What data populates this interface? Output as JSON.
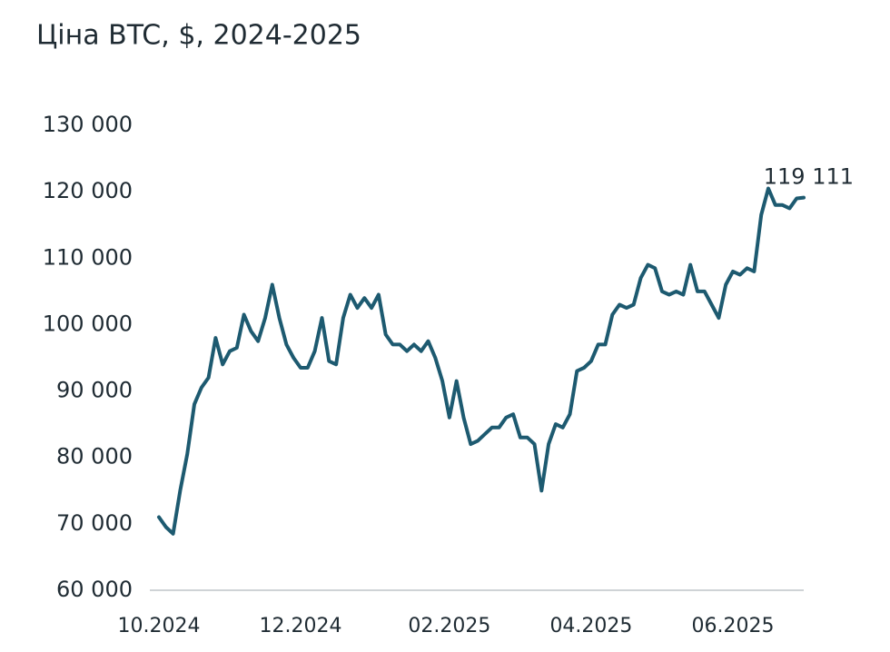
{
  "chart_data": {
    "type": "line",
    "title": "Ціна BTC, $, 2024-2025",
    "categories": [
      "10.2024",
      null,
      null,
      null,
      null,
      null,
      null,
      null,
      null,
      null,
      null,
      null,
      null,
      null,
      null,
      null,
      null,
      null,
      null,
      null,
      "12.2024",
      null,
      null,
      null,
      null,
      null,
      null,
      null,
      null,
      null,
      null,
      null,
      null,
      null,
      null,
      null,
      null,
      null,
      null,
      null,
      null,
      "02.2025",
      null,
      null,
      null,
      null,
      null,
      null,
      null,
      null,
      null,
      null,
      null,
      null,
      null,
      null,
      null,
      null,
      null,
      null,
      null,
      "04.2025",
      null,
      null,
      null,
      null,
      null,
      null,
      null,
      null,
      null,
      null,
      null,
      null,
      null,
      null,
      null,
      null,
      null,
      null,
      null,
      "06.2025",
      null,
      null,
      null,
      null,
      null,
      null,
      null,
      null,
      null,
      null
    ],
    "values": [
      71000,
      69500,
      68500,
      75000,
      80500,
      88000,
      90500,
      92000,
      98000,
      94000,
      96000,
      96500,
      101500,
      99000,
      97500,
      101000,
      106000,
      101000,
      97000,
      95000,
      93500,
      93500,
      96000,
      101000,
      94500,
      94000,
      101000,
      104500,
      102500,
      104000,
      102500,
      104500,
      98500,
      97000,
      97000,
      96000,
      97000,
      96000,
      97500,
      95000,
      91500,
      86000,
      91500,
      86000,
      82000,
      82500,
      83500,
      84500,
      84500,
      86000,
      86500,
      83000,
      83000,
      82000,
      75000,
      82000,
      85000,
      84500,
      86500,
      93000,
      93500,
      94500,
      97000,
      97000,
      101500,
      103000,
      102500,
      103000,
      107000,
      109000,
      108500,
      105000,
      104500,
      105000,
      104500,
      109000,
      105000,
      105000,
      103000,
      101000,
      106000,
      108000,
      107500,
      108500,
      108000,
      116500,
      120500,
      118000,
      118000,
      117500,
      119000,
      119111
    ],
    "value_labels": [
      null,
      null,
      null,
      null,
      null,
      null,
      null,
      null,
      null,
      null,
      null,
      null,
      null,
      null,
      null,
      null,
      null,
      null,
      null,
      null,
      null,
      null,
      null,
      null,
      null,
      null,
      null,
      null,
      null,
      null,
      null,
      null,
      null,
      null,
      null,
      null,
      null,
      null,
      null,
      null,
      null,
      null,
      null,
      null,
      null,
      null,
      null,
      null,
      null,
      null,
      null,
      null,
      null,
      null,
      null,
      null,
      null,
      null,
      null,
      null,
      null,
      null,
      null,
      null,
      null,
      null,
      null,
      null,
      null,
      null,
      null,
      null,
      null,
      null,
      null,
      null,
      null,
      null,
      null,
      null,
      null,
      null,
      null,
      null,
      null,
      null,
      null,
      null,
      null,
      null,
      null,
      "119 111"
    ],
    "color": "#1d5a70",
    "ylim": [
      60000,
      130000
    ],
    "yticks": [
      {
        "value": 60000,
        "label": "60 000"
      },
      {
        "value": 70000,
        "label": "70 000"
      },
      {
        "value": 80000,
        "label": "80 000"
      },
      {
        "value": 90000,
        "label": "90 000"
      },
      {
        "value": 100000,
        "label": "100 000"
      },
      {
        "value": 110000,
        "label": "110 000"
      },
      {
        "value": 120000,
        "label": "120 000"
      },
      {
        "value": 130000,
        "label": "130 000"
      }
    ],
    "grid": false
  }
}
